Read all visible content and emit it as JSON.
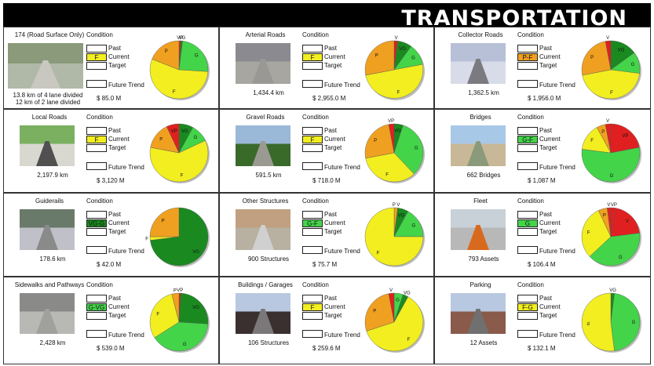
{
  "header": {
    "title": "TRANSPORTATION"
  },
  "labels": {
    "condition": "Condition",
    "past": "Past",
    "current": "Current",
    "target": "Target",
    "future_trend": "Future Trend"
  },
  "colors": {
    "VP": "#e02020",
    "P": "#f0a020",
    "F": "#f2ee20",
    "G": "#44d44a",
    "VG": "#1a8a20",
    "frame": "#333333",
    "header": "#000000"
  },
  "assets": [
    {
      "name": "174 (Road Surface Only)",
      "caption": [
        "13.8 km of 4 lane divided",
        "12 km of 2 lane divided"
      ],
      "current": "F",
      "current_color": "#f2ee20",
      "cost": "$ 85.0 M",
      "photo_icon": "highway-interchange-photo",
      "chart_data": {
        "type": "pie",
        "slices": [
          {
            "label": "VP",
            "value": 1
          },
          {
            "label": "VG",
            "value": 1
          },
          {
            "label": "G",
            "value": 24
          },
          {
            "label": "F",
            "value": 55
          },
          {
            "label": "P",
            "value": 19
          }
        ]
      }
    },
    {
      "name": "Arterial Roads",
      "caption": [
        "1,434.4 km"
      ],
      "current": "F",
      "current_color": "#f2ee20",
      "cost": "$ 2,955.0 M",
      "photo_icon": "city-street-photo",
      "chart_data": {
        "type": "pie",
        "slices": [
          {
            "label": "V",
            "value": 2
          },
          {
            "label": "VG",
            "value": 8
          },
          {
            "label": "G",
            "value": 12
          },
          {
            "label": "F",
            "value": 50
          },
          {
            "label": "P",
            "value": 28
          }
        ]
      }
    },
    {
      "name": "Collector Roads",
      "caption": [
        "1,362.5 km"
      ],
      "current": "P-F",
      "current_color": "#f0a020",
      "cost": "$ 1,956.0 M",
      "photo_icon": "rural-road-photo",
      "chart_data": {
        "type": "pie",
        "slices": [
          {
            "label": "VG",
            "value": 15
          },
          {
            "label": "G",
            "value": 12
          },
          {
            "label": "F",
            "value": 45
          },
          {
            "label": "P",
            "value": 25
          },
          {
            "label": "V",
            "value": 3
          }
        ]
      }
    },
    {
      "name": "Local Roads",
      "caption": [
        "2,197.9 km"
      ],
      "current": "F",
      "current_color": "#f2ee20",
      "cost": "$ 3,120 M",
      "photo_icon": "residential-road-photo",
      "chart_data": {
        "type": "pie",
        "slices": [
          {
            "label": "VG",
            "value": 8
          },
          {
            "label": "G",
            "value": 10
          },
          {
            "label": "F",
            "value": 60
          },
          {
            "label": "P",
            "value": 15
          },
          {
            "label": "VP",
            "value": 7
          }
        ]
      }
    },
    {
      "name": "Gravel Roads",
      "caption": [
        "591.5 km"
      ],
      "current": "F",
      "current_color": "#f2ee20",
      "cost": "$ 718.0 M",
      "photo_icon": "gravel-road-photo",
      "chart_data": {
        "type": "pie",
        "slices": [
          {
            "label": "VG",
            "value": 5
          },
          {
            "label": "G",
            "value": 33
          },
          {
            "label": "F",
            "value": 34
          },
          {
            "label": "P",
            "value": 25
          },
          {
            "label": "VP",
            "value": 3
          }
        ]
      }
    },
    {
      "name": "Bridges",
      "caption": [
        "662 Bridges"
      ],
      "current": "G-F",
      "current_color": "#44d44a",
      "cost": "$ 1,087 M",
      "photo_icon": "stone-bridge-photo",
      "chart_data": {
        "type": "pie",
        "slices": [
          {
            "label": "VP",
            "value": 22
          },
          {
            "label": "G",
            "value": 55
          },
          {
            "label": "F",
            "value": 15
          },
          {
            "label": "P",
            "value": 5
          },
          {
            "label": "V",
            "value": 3
          }
        ]
      }
    },
    {
      "name": "Guiderails",
      "caption": [
        "178.6 km"
      ],
      "current": "VG-G",
      "current_color": "#1a8a20",
      "cost": "$ 42.0 M",
      "photo_icon": "guiderail-photo",
      "chart_data": {
        "type": "pie",
        "slices": [
          {
            "label": "VG",
            "value": 73
          },
          {
            "label": "F",
            "value": 2
          },
          {
            "label": "P",
            "value": 25
          }
        ]
      }
    },
    {
      "name": "Other Structures",
      "caption": [
        "900 Structures"
      ],
      "current": "G-F",
      "current_color": "#44d44a",
      "cost": "$ 75.7 M",
      "photo_icon": "sound-wall-photo",
      "chart_data": {
        "type": "pie",
        "slices": [
          {
            "label": "P V",
            "value": 2
          },
          {
            "label": "VG",
            "value": 6
          },
          {
            "label": "G",
            "value": 17
          },
          {
            "label": "F",
            "value": 75
          }
        ]
      }
    },
    {
      "name": "Fleet",
      "caption": [
        "793 Assets"
      ],
      "current": "G",
      "current_color": "#44d44a",
      "cost": "$ 106.4 M",
      "photo_icon": "snowplow-truck-photo",
      "chart_data": {
        "type": "pie",
        "slices": [
          {
            "label": "VP",
            "value": 3
          },
          {
            "label": "V",
            "value": 20
          },
          {
            "label": "G",
            "value": 40
          },
          {
            "label": "F",
            "value": 30
          },
          {
            "label": "P",
            "value": 5
          },
          {
            "label": "V",
            "value": 2
          }
        ]
      }
    },
    {
      "name": "Sidewalks and Pathways",
      "caption": [
        "2,428 km"
      ],
      "current": "G-VG",
      "current_color": "#44d44a",
      "cost": "$ 539.0 M",
      "photo_icon": "sidewalk-photo",
      "chart_data": {
        "type": "pie",
        "slices": [
          {
            "label": "VP",
            "value": 1
          },
          {
            "label": "VG",
            "value": 25
          },
          {
            "label": "G",
            "value": 40
          },
          {
            "label": "F",
            "value": 30
          },
          {
            "label": "P",
            "value": 4
          }
        ]
      }
    },
    {
      "name": "Buildings / Garages",
      "caption": [
        "106 Structures"
      ],
      "current": "F",
      "current_color": "#f2ee20",
      "cost": "$ 259.6 M",
      "photo_icon": "salt-dome-photo",
      "chart_data": {
        "type": "pie",
        "slices": [
          {
            "label": "G",
            "value": 5
          },
          {
            "label": "VG",
            "value": 3
          },
          {
            "label": "F",
            "value": 62
          },
          {
            "label": "P",
            "value": 27
          },
          {
            "label": "V",
            "value": 3
          }
        ]
      }
    },
    {
      "name": "Parking",
      "caption": [
        "12 Assets"
      ],
      "current": "F-G",
      "current_color": "#f2ee20",
      "cost": "$ 132.1 M",
      "photo_icon": "parking-garage-photo",
      "chart_data": {
        "type": "pie",
        "slices": [
          {
            "label": "VG",
            "value": 2
          },
          {
            "label": "G",
            "value": 46
          },
          {
            "label": "d",
            "value": 52
          }
        ]
      }
    }
  ]
}
